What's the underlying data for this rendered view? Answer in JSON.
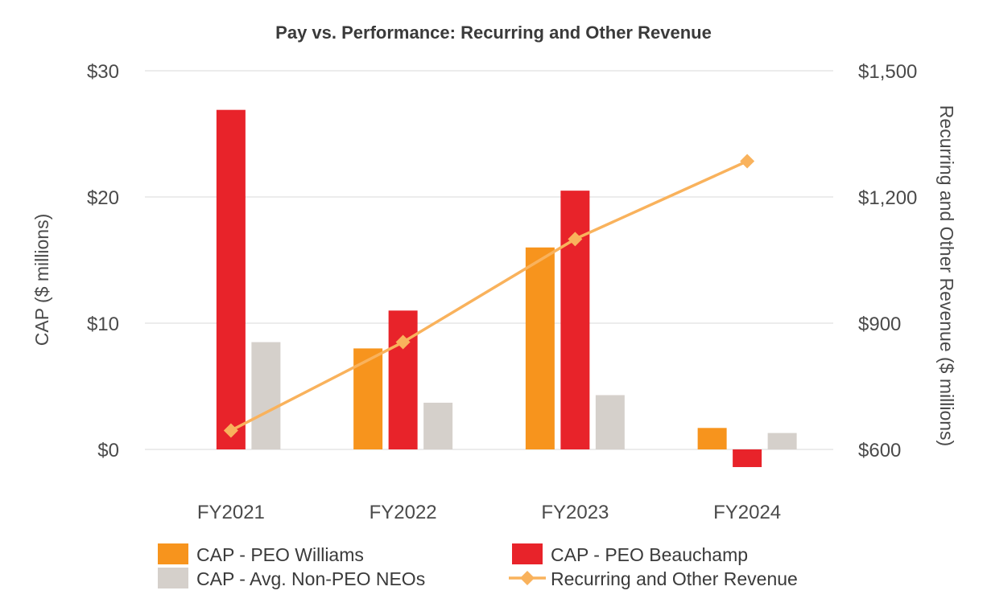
{
  "chart_data": {
    "type": "bar",
    "title": "Pay vs. Performance: Recurring and Other Revenue",
    "categories": [
      "FY2021",
      "FY2022",
      "FY2023",
      "FY2024"
    ],
    "ylabel": "CAP ($ millions)",
    "y2label": "Recurring and Other Revenue ($ millions)",
    "ylim": [
      0,
      30
    ],
    "y2lim": [
      600,
      1500
    ],
    "yticks": [
      {
        "value": 0,
        "label": "$0"
      },
      {
        "value": 10,
        "label": "$10"
      },
      {
        "value": 20,
        "label": "$20"
      },
      {
        "value": 30,
        "label": "$30"
      }
    ],
    "y2ticks": [
      {
        "value": 600,
        "label": "$600"
      },
      {
        "value": 900,
        "label": "$900"
      },
      {
        "value": 1200,
        "label": "$1,200"
      },
      {
        "value": 1500,
        "label": "$1,500"
      }
    ],
    "grid": true,
    "series": [
      {
        "name": "CAP - PEO Williams",
        "kind": "bar",
        "color": "#F7941D",
        "values": [
          null,
          8.0,
          16.0,
          1.7
        ]
      },
      {
        "name": "CAP - PEO Beauchamp",
        "kind": "bar",
        "color": "#E8232A",
        "values": [
          26.9,
          11.0,
          20.5,
          -1.4
        ]
      },
      {
        "name": "CAP - Avg. Non-PEO NEOs",
        "kind": "bar",
        "color": "#D5D0CB",
        "values": [
          8.5,
          3.7,
          4.3,
          1.3
        ]
      },
      {
        "name": "Recurring and Other Revenue",
        "kind": "line",
        "axis": "y2",
        "color": "#F9B25C",
        "values": [
          645,
          855,
          1100,
          1285
        ]
      }
    ]
  }
}
